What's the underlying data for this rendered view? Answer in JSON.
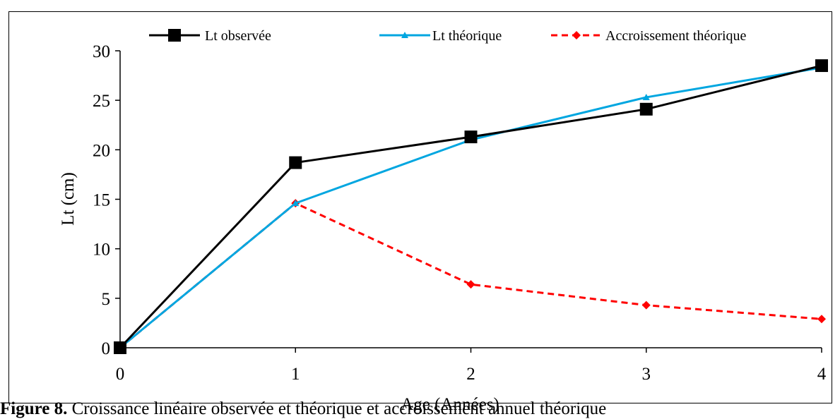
{
  "caption": {
    "label": "Figure 8.",
    "text": "Croissance linéaire observée et théorique et accroissement annuel théorique"
  },
  "chart_data": {
    "type": "line",
    "xlabel": "Age (Années)",
    "ylabel": "Lt (cm)",
    "xlim": [
      0,
      4
    ],
    "ylim": [
      0,
      30
    ],
    "x_ticks": [
      "0",
      "1",
      "2",
      "3",
      "4"
    ],
    "y_ticks": [
      "0",
      "5",
      "10",
      "15",
      "20",
      "25",
      "30"
    ],
    "grid": false,
    "legend_position": "top",
    "x": [
      0,
      1,
      2,
      3,
      4
    ],
    "series": [
      {
        "name": "Lt observée",
        "values": [
          0,
          18.7,
          21.3,
          24.1,
          28.5
        ],
        "color": "#000000",
        "marker": "square",
        "dash": "solid"
      },
      {
        "name": "Lt  théorique",
        "values": [
          0,
          14.6,
          21.0,
          25.3,
          28.3
        ],
        "color": "#00A6E0",
        "marker": "triangle",
        "dash": "solid"
      },
      {
        "name": "Accroissement  théorique",
        "values": [
          0,
          14.6,
          6.4,
          4.3,
          2.9
        ],
        "color": "#FF0000",
        "marker": "diamond",
        "dash": "dashed"
      }
    ]
  }
}
